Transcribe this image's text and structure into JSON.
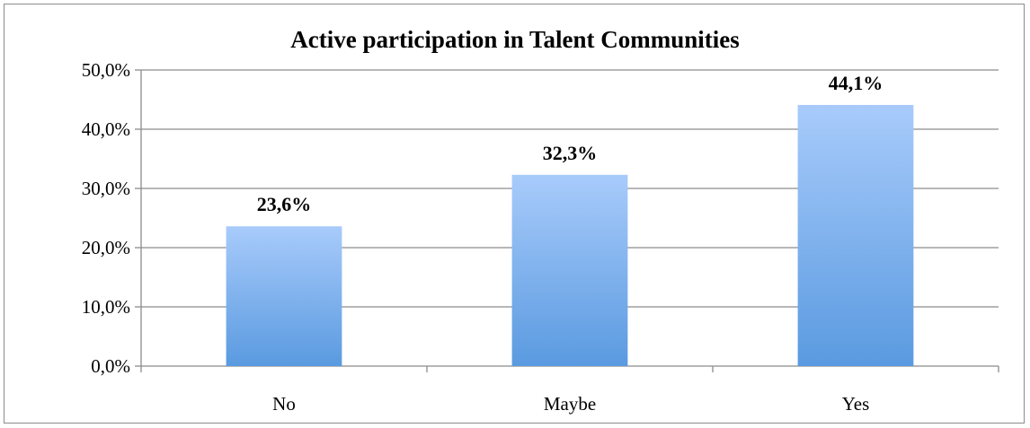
{
  "chart_data": {
    "type": "bar",
    "title": "Active participation in Talent Communities",
    "categories": [
      "No",
      "Maybe",
      "Yes"
    ],
    "values": [
      23.6,
      32.3,
      44.1
    ],
    "data_labels": [
      "23,6%",
      "32,3%",
      "44,1%"
    ],
    "y_ticks": [
      0,
      10,
      20,
      30,
      40,
      50
    ],
    "y_tick_labels": [
      "0,0%",
      "10,0%",
      "20,0%",
      "30,0%",
      "40,0%",
      "50,0%"
    ],
    "ylim": [
      0,
      50
    ],
    "grid": true,
    "legend": "none",
    "colors": {
      "bar_top": "#a8cbfb",
      "bar_bottom": "#5a9ae0",
      "grid": "#8c8c8c"
    }
  }
}
